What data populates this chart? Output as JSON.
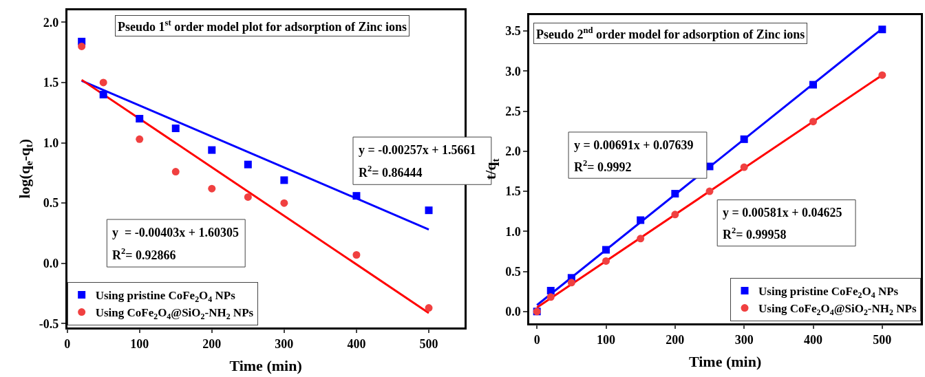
{
  "chart_data": [
    {
      "type": "scatter",
      "title": "Pseudo 1$^{st}$ order model plot for adsorption of Zinc ions",
      "xlabel": "Time (min)",
      "ylabel": "log(q$_{e}$-q$_{t}$)",
      "xlim": [
        0,
        549
      ],
      "ylim": [
        -0.53,
        2.1
      ],
      "xticks": [
        0,
        100,
        200,
        300,
        400,
        500
      ],
      "yticks": [
        {
          "value": -0.5,
          "label": "-0.5"
        },
        {
          "value": 0,
          "label": "0.0"
        },
        {
          "value": 0.5,
          "label": "0.5"
        },
        {
          "value": 1,
          "label": "1.0"
        },
        {
          "value": 1.5,
          "label": "1.5"
        },
        {
          "value": 2,
          "label": "2.0"
        }
      ],
      "legend": "bottom left",
      "annotations": [
        "y = -0.00257x + 1.5661",
        "R$^{2}$= 0.86444",
        "y  = -0.00403x + 1.60305",
        "R$^{2}$= 0.92866"
      ],
      "series": [
        {
          "name": "Using pristine CoFe$_{2}$O$_{4}$ NPs",
          "color": "#0000ff",
          "marker": "square",
          "x": [
            20,
            50,
            100,
            150,
            200,
            250,
            300,
            400,
            500
          ],
          "values": [
            1.84,
            1.4,
            1.2,
            1.12,
            0.94,
            0.82,
            0.69,
            0.56,
            0.44
          ]
        },
        {
          "name": "Using CoFe$_{2}$O$_{4}$@SiO$_{2}$-NH$_{2}$ NPs",
          "color": "#f04040",
          "marker": "circle",
          "x": [
            20,
            50,
            100,
            150,
            200,
            250,
            300,
            400,
            500
          ],
          "values": [
            1.8,
            1.5,
            1.03,
            0.76,
            0.62,
            0.55,
            0.5,
            0.07,
            -0.37
          ]
        },
        {
          "type": "line",
          "color": "#0000ff",
          "x": [
            20,
            500
          ],
          "values": [
            1.515,
            0.281
          ]
        },
        {
          "type": "line",
          "color": "#ff0000",
          "x": [
            20,
            500
          ],
          "values": [
            1.522,
            -0.412
          ]
        }
      ]
    },
    {
      "type": "scatter",
      "title": "Pseudo 2$^{nd}$ order model for adsorption of Zinc ions",
      "xlabel": "Time (min)",
      "ylabel": "t/q$_{t}$",
      "xlim": [
        -11,
        556
      ],
      "ylim": [
        -0.145,
        3.7
      ],
      "xticks": [
        0,
        100,
        200,
        300,
        400,
        500
      ],
      "yticks": [
        {
          "value": 0,
          "label": "0.0"
        },
        {
          "value": 0.5,
          "label": "0.5"
        },
        {
          "value": 1,
          "label": "1.0"
        },
        {
          "value": 1.5,
          "label": "1.5"
        },
        {
          "value": 2,
          "label": "2.0"
        },
        {
          "value": 2.5,
          "label": "2.5"
        },
        {
          "value": 3,
          "label": "3.0"
        },
        {
          "value": 3.5,
          "label": "3.5"
        }
      ],
      "legend": "bottom right",
      "annotations": [
        "y = 0.00691x + 0.07639",
        "R$^{2}$= 0.9992",
        "y = 0.00581x + 0.04625",
        "R$^{2}$= 0.99958"
      ],
      "series": [
        {
          "name": "Using pristine CoFe$_{2}$O$_{4}$ NPs",
          "color": "#0000ff",
          "marker": "square",
          "x": [
            0,
            20,
            50,
            100,
            150,
            200,
            250,
            300,
            400,
            500
          ],
          "values": [
            0,
            0.26,
            0.42,
            0.77,
            1.14,
            1.47,
            1.81,
            2.15,
            2.83,
            3.52
          ]
        },
        {
          "name": "Using CoFe$_{2}$O$_{4}$@SiO$_{2}$-NH$_{2}$ NPs",
          "color": "#f04040",
          "marker": "circle",
          "x": [
            0,
            20,
            50,
            100,
            150,
            200,
            250,
            300,
            400,
            500
          ],
          "values": [
            0,
            0.18,
            0.36,
            0.63,
            0.91,
            1.21,
            1.5,
            1.8,
            2.37,
            2.95
          ]
        },
        {
          "type": "line",
          "color": "#0000ff",
          "x": [
            0,
            500
          ],
          "values": [
            0.08,
            3.53
          ]
        },
        {
          "type": "line",
          "color": "#ff0000",
          "x": [
            0,
            500
          ],
          "values": [
            0.05,
            2.95
          ]
        }
      ]
    }
  ]
}
